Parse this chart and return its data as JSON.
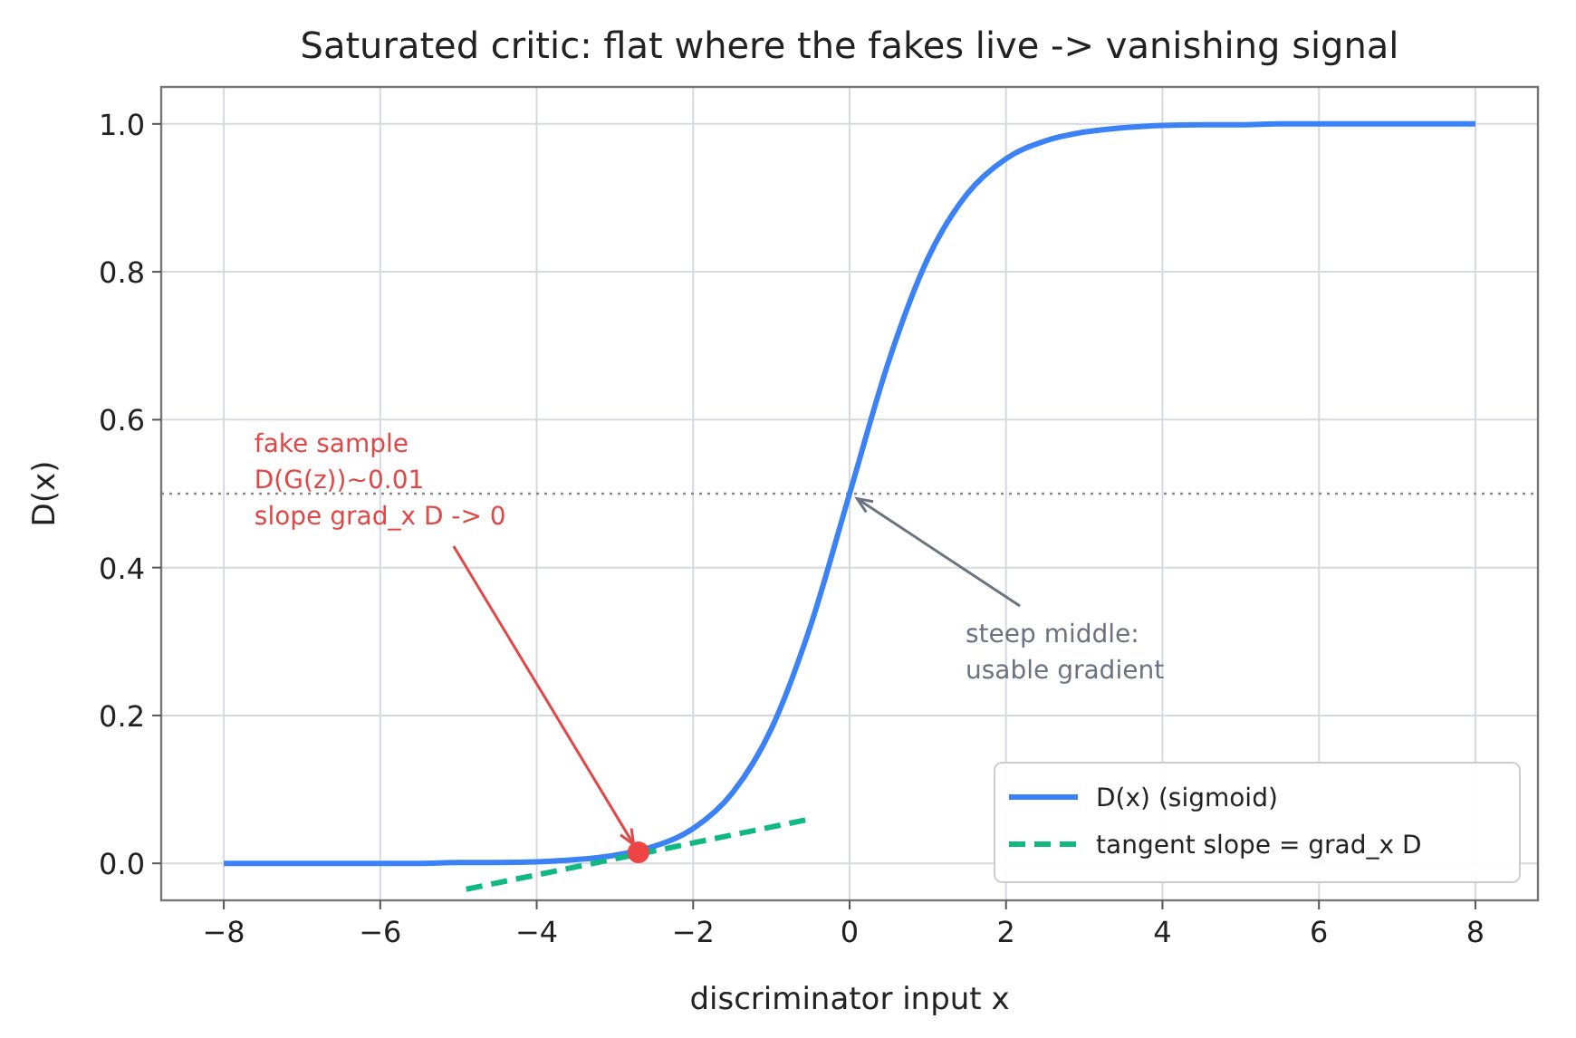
{
  "chart_data": {
    "type": "line",
    "title": "Saturated critic: flat where the fakes live -> vanishing signal",
    "xlabel": "discriminator input x",
    "ylabel": "D(x)",
    "xlim": [
      -8.8,
      8.8
    ],
    "xticks": [
      {
        "value": -8,
        "label": "−8"
      },
      {
        "value": -6,
        "label": "−6"
      },
      {
        "value": -4,
        "label": "−4"
      },
      {
        "value": -2,
        "label": "−2"
      },
      0,
      2,
      4,
      6,
      8
    ],
    "ylim": [
      -0.05,
      1.05
    ],
    "yticks": [
      {
        "value": 0,
        "label": "0.0"
      },
      {
        "value": 0.2,
        "label": "0.2"
      },
      {
        "value": 0.4,
        "label": "0.4"
      },
      {
        "value": 0.6,
        "label": "0.6"
      },
      {
        "value": 0.8,
        "label": "0.8"
      },
      {
        "value": 1,
        "label": "1.0"
      }
    ],
    "grid": true,
    "legend": "bottom right",
    "series": [
      {
        "name": "D(x) (sigmoid)",
        "color": "#3b82f6",
        "line_style": "solid",
        "x": [
          -8,
          -7.5,
          -7,
          -6.5,
          -6,
          -5.5,
          -5,
          -4.5,
          -4,
          -3.5,
          -3,
          -2.5,
          -2,
          -1.5,
          -1,
          -0.5,
          0,
          0.5,
          1,
          1.5,
          2,
          2.5,
          3,
          3.5,
          4,
          4.5,
          5,
          5.5,
          6,
          6.5,
          7,
          7.5,
          8
        ],
        "values": [
          0,
          0,
          0,
          0,
          0,
          0,
          0.001,
          0.001,
          0.002,
          0.005,
          0.011,
          0.023,
          0.047,
          0.095,
          0.182,
          0.321,
          0.5,
          0.679,
          0.818,
          0.905,
          0.953,
          0.977,
          0.989,
          0.995,
          0.998,
          0.999,
          0.999,
          1,
          1,
          1,
          1,
          1,
          1
        ]
      },
      {
        "name": "tangent slope = grad_x D",
        "color": "#10b981",
        "line_style": "dashed",
        "x": [
          -4.9,
          -0.5
        ],
        "values": [
          -0.035,
          0.06
        ]
      },
      {
        "color": "#ef4444",
        "type": "scatter",
        "marker": "circle",
        "x": [
          -2.7
        ],
        "values": [
          0.015
        ]
      }
    ],
    "ref_lines": [
      {
        "axis": "y",
        "value": 0.5,
        "color": "#888888",
        "line_style": "dotted"
      }
    ],
    "annotations": [
      {
        "text": "fake sample\nD(G(z))~0.01\nslope grad_x D -> 0",
        "x": -2.7,
        "y": 0.015
      },
      {
        "text": "steep middle:\nusable gradient",
        "x": 0,
        "y": 0.5
      }
    ]
  }
}
